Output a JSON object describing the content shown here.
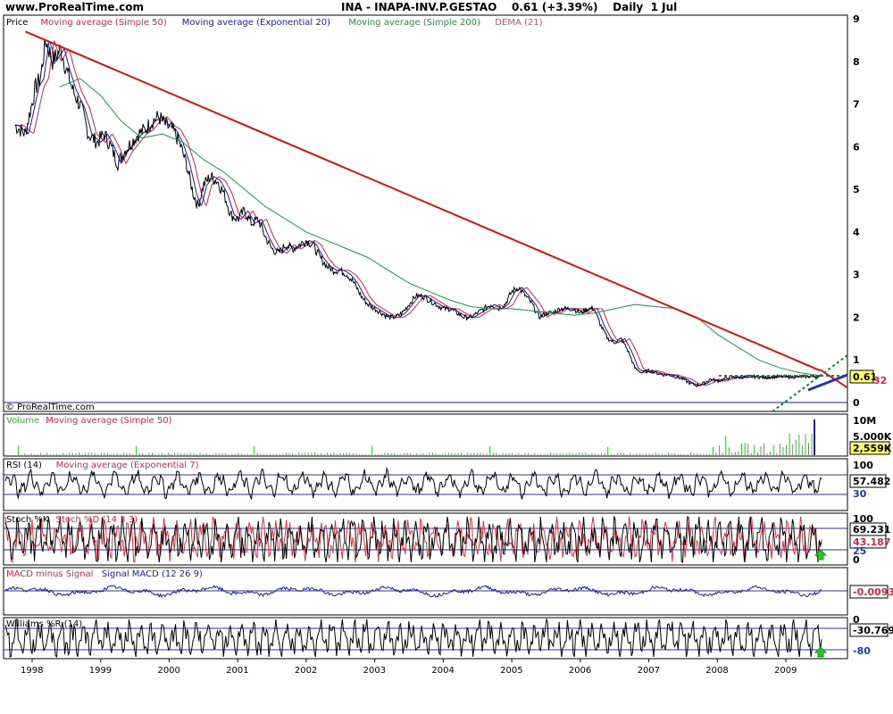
{
  "header": {
    "site": "www.ProRealTime.com",
    "instrument": "INA - INAPA-INV.P.GESTAO    0.61 (+3.39%)    Daily  1 Jul"
  },
  "colors": {
    "price": "#000000",
    "sma50": "#dd2244",
    "ema20": "#1a1aaa",
    "sma200": "#119944",
    "dema": "#dd4466",
    "trendline": "#dd1111",
    "volume": "#33bb33",
    "indicator": "#000000",
    "signal": "#dd3344",
    "level": "#2233bb"
  },
  "panels": {
    "price": {
      "legend": [
        {
          "text": "Price",
          "color": "#000000"
        },
        {
          "text": "Moving average (Simple 50)",
          "color": "#dd2244"
        },
        {
          "text": "Moving average (Exponential 20)",
          "color": "#1a1aaa"
        },
        {
          "text": "Moving average (Simple 200)",
          "color": "#119944"
        },
        {
          "text": "DEMA (21)",
          "color": "#dd4466"
        }
      ],
      "yticks": [
        "9",
        "8",
        "7",
        "6",
        "5",
        "4",
        "3",
        "2",
        "1",
        "0"
      ],
      "last_value": "0.61",
      "side_value": "32",
      "copyright": "© ProRealTime.com"
    },
    "volume": {
      "legend": [
        {
          "text": "Volume",
          "color": "#33bb33"
        },
        {
          "text": "Moving average (Simple 50)",
          "color": "#dd2244"
        }
      ],
      "yticks": [
        "10M",
        "5.000K"
      ],
      "last_value": "2,559K"
    },
    "rsi": {
      "legend": [
        {
          "text": "RSI (14)",
          "color": "#000000"
        },
        {
          "text": "Moving average (Exponential 7)",
          "color": "#dd2244"
        }
      ],
      "yticks": [
        "100",
        "30"
      ],
      "last_value": "57.482"
    },
    "stoch": {
      "legend": [
        {
          "text": "Stoch %K",
          "color": "#000000"
        },
        {
          "text": "Stoch %D (14 3 3)",
          "color": "#dd2244"
        }
      ],
      "yticks": [
        "100",
        "25",
        "0"
      ],
      "last_value": "69.231",
      "last_value2": "43.187"
    },
    "macd": {
      "legend": [
        {
          "text": "MACD minus Signal",
          "color": "#dd2244"
        },
        {
          "text": "Signal MACD (12 26 9)",
          "color": "#1a1aaa"
        }
      ],
      "last_value": "-0.0093"
    },
    "williams": {
      "legend": [
        {
          "text": "Williams %R (14)",
          "color": "#000000"
        }
      ],
      "yticks": [
        "0",
        "-80"
      ],
      "last_value": "-30.769"
    }
  },
  "x_axis": {
    "ticks": [
      "1998",
      "1999",
      "2000",
      "2001",
      "2002",
      "2003",
      "2004",
      "2005",
      "2006",
      "2007",
      "2008",
      "2009"
    ]
  },
  "chart_data": {
    "type": "line",
    "xlabel": "",
    "ylabel": "",
    "x_range": [
      "1997-10",
      "2009-07"
    ],
    "price_range": [
      0,
      9
    ],
    "price_series": {
      "name": "Price",
      "x": [
        1997.75,
        1997.9,
        1998.05,
        1998.12,
        1998.2,
        1998.3,
        1998.42,
        1998.5,
        1998.6,
        1998.72,
        1998.82,
        1998.95,
        1999.05,
        1999.15,
        1999.25,
        1999.35,
        1999.45,
        1999.55,
        1999.65,
        1999.75,
        1999.85,
        1999.95,
        2000.05,
        2000.15,
        2000.25,
        2000.35,
        2000.42,
        2000.5,
        2000.6,
        2000.7,
        2000.8,
        2000.9,
        2001.0,
        2001.1,
        2001.2,
        2001.3,
        2001.4,
        2001.5,
        2001.6,
        2001.7,
        2001.8,
        2001.9,
        2002.0,
        2002.1,
        2002.2,
        2002.3,
        2002.4,
        2002.5,
        2002.6,
        2002.7,
        2002.8,
        2002.9,
        2003.0,
        2003.1,
        2003.2,
        2003.3,
        2003.4,
        2003.5,
        2003.6,
        2003.7,
        2003.8,
        2003.9,
        2004.0,
        2004.1,
        2004.2,
        2004.3,
        2004.4,
        2004.5,
        2004.6,
        2004.7,
        2004.8,
        2004.9,
        2005.0,
        2005.1,
        2005.2,
        2005.3,
        2005.4,
        2005.5,
        2005.6,
        2005.7,
        2005.8,
        2005.9,
        2006.0,
        2006.1,
        2006.2,
        2006.3,
        2006.4,
        2006.5,
        2006.6,
        2006.7,
        2006.8,
        2006.9,
        2007.0,
        2007.1,
        2007.2,
        2007.3,
        2007.4,
        2007.5,
        2007.6,
        2007.7,
        2007.8,
        2007.9,
        2008.0,
        2008.1,
        2008.2,
        2008.3,
        2008.4,
        2008.5,
        2008.6,
        2008.7,
        2008.8,
        2008.9,
        2009.0,
        2009.1,
        2009.2,
        2009.3,
        2009.4,
        2009.5
      ],
      "y": [
        6.5,
        6.3,
        7.4,
        7.6,
        8.5,
        8.0,
        8.3,
        7.8,
        7.3,
        6.9,
        6.3,
        6.1,
        6.3,
        6.0,
        5.6,
        5.9,
        6.1,
        6.3,
        6.4,
        6.6,
        6.7,
        6.5,
        6.4,
        6.1,
        5.6,
        4.9,
        4.6,
        5.1,
        5.3,
        5.2,
        4.9,
        4.4,
        4.3,
        4.5,
        4.2,
        4.3,
        3.9,
        3.6,
        3.5,
        3.7,
        3.6,
        3.7,
        3.8,
        3.7,
        3.4,
        3.2,
        3.1,
        3.1,
        3.0,
        2.8,
        2.5,
        2.3,
        2.2,
        2.1,
        2.0,
        2.0,
        2.1,
        2.3,
        2.5,
        2.5,
        2.4,
        2.3,
        2.2,
        2.2,
        2.1,
        2.0,
        2.0,
        2.1,
        2.2,
        2.3,
        2.2,
        2.3,
        2.6,
        2.7,
        2.5,
        2.3,
        2.0,
        2.1,
        2.1,
        2.2,
        2.2,
        2.2,
        2.1,
        2.2,
        2.2,
        1.8,
        1.5,
        1.4,
        1.5,
        1.2,
        0.8,
        0.7,
        0.75,
        0.7,
        0.65,
        0.65,
        0.6,
        0.55,
        0.45,
        0.4,
        0.45,
        0.55,
        0.5,
        0.55,
        0.6,
        0.58,
        0.6,
        0.61,
        0.6,
        0.58,
        0.6,
        0.61,
        0.6,
        0.6,
        0.61,
        0.61,
        0.61,
        0.61
      ]
    },
    "sma200_series": {
      "name": "Moving average (Simple 200)",
      "x": [
        1998.4,
        1998.7,
        1999.0,
        1999.3,
        1999.6,
        1999.9,
        2000.2,
        2000.5,
        2000.8,
        2001.1,
        2001.4,
        2001.7,
        2002.0,
        2002.3,
        2002.6,
        2002.9,
        2003.2,
        2003.5,
        2003.8,
        2004.1,
        2004.4,
        2004.7,
        2005.0,
        2005.3,
        2005.6,
        2005.9,
        2006.2,
        2006.5,
        2006.8,
        2007.1,
        2007.4,
        2007.7,
        2008.0,
        2008.3,
        2008.6,
        2008.9,
        2009.2,
        2009.5
      ],
      "y": [
        7.4,
        7.6,
        7.2,
        6.6,
        6.2,
        6.3,
        6.1,
        5.7,
        5.4,
        5.0,
        4.6,
        4.3,
        4.0,
        3.8,
        3.6,
        3.4,
        3.1,
        2.8,
        2.6,
        2.4,
        2.25,
        2.2,
        2.2,
        2.15,
        2.1,
        2.05,
        2.1,
        2.2,
        2.3,
        2.25,
        2.2,
        2.0,
        1.6,
        1.3,
        1.0,
        0.82,
        0.7,
        0.63
      ]
    },
    "trendline": {
      "x": [
        1997.9,
        2009.5
      ],
      "y": [
        8.7,
        0.75
      ]
    },
    "volume_ylim": [
      0,
      10000000
    ],
    "rsi_ylim": [
      0,
      100
    ],
    "stoch_ylim": [
      0,
      100
    ],
    "williams_ylim": [
      -100,
      0
    ]
  }
}
